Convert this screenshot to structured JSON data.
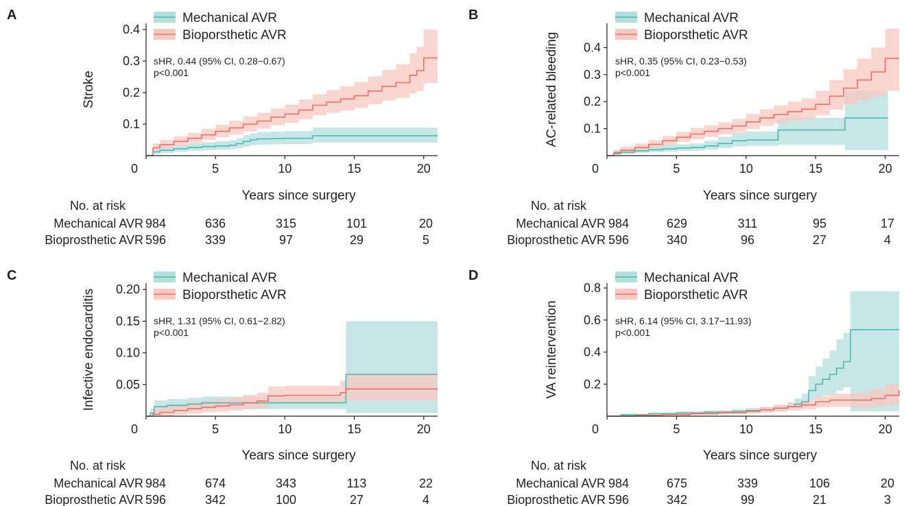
{
  "colors": {
    "mechanical_line": "#4bb8b4",
    "mechanical_band": "#b3dfdc",
    "bioprosthetic_line": "#ee6f61",
    "bioprosthetic_band": "#f8c8c2",
    "axis": "#231f20"
  },
  "risk_table": {
    "header": "No. at risk",
    "row_labels": [
      "Mechanical AVR",
      "Bioprosthetic AVR"
    ]
  },
  "chart_data": [
    {
      "panel": "A",
      "type": "line",
      "ylabel": "Stroke",
      "xlabel": "Years since surgery",
      "xlim": [
        0,
        21
      ],
      "ylim": [
        0,
        0.42
      ],
      "xticks": [
        0,
        5,
        10,
        15,
        20
      ],
      "yticks": [
        0.1,
        0.2,
        0.3,
        0.4
      ],
      "ytick_labels": [
        "0.1",
        "0.2",
        "0.3",
        "0.4"
      ],
      "legend_position": "top-left",
      "stats": [
        "sHR, 0.44 (95% CI, 0.28−0.67)",
        "p<0.001"
      ],
      "series": [
        {
          "name": "Mechanical AVR",
          "x": [
            0,
            0.5,
            1,
            2,
            3,
            4,
            5,
            6,
            6.5,
            7,
            7.5,
            8,
            9,
            10,
            11,
            12,
            13,
            14,
            15,
            16,
            17,
            18,
            19,
            20,
            21
          ],
          "y": [
            0,
            0.012,
            0.017,
            0.022,
            0.026,
            0.029,
            0.031,
            0.033,
            0.038,
            0.045,
            0.05,
            0.053,
            0.054,
            0.055,
            0.055,
            0.063,
            0.063,
            0.063,
            0.063,
            0.063,
            0.063,
            0.063,
            0.063,
            0.063,
            0.063
          ],
          "lower": [
            0,
            0.005,
            0.008,
            0.012,
            0.015,
            0.017,
            0.019,
            0.02,
            0.024,
            0.029,
            0.033,
            0.035,
            0.036,
            0.037,
            0.037,
            0.042,
            0.042,
            0.042,
            0.042,
            0.042,
            0.042,
            0.042,
            0.042,
            0.042,
            0.042
          ],
          "upper": [
            0,
            0.022,
            0.028,
            0.034,
            0.039,
            0.043,
            0.046,
            0.049,
            0.056,
            0.065,
            0.071,
            0.075,
            0.076,
            0.078,
            0.078,
            0.089,
            0.089,
            0.089,
            0.089,
            0.089,
            0.089,
            0.089,
            0.089,
            0.089,
            0.089
          ]
        },
        {
          "name": "Bioporsthetic AVR",
          "x": [
            0,
            0.5,
            1,
            2,
            3,
            4,
            5,
            6,
            7,
            8,
            9,
            10,
            11,
            12,
            13,
            14,
            15,
            16,
            17,
            18,
            19,
            19.5,
            20,
            21
          ],
          "y": [
            0,
            0.025,
            0.035,
            0.045,
            0.055,
            0.066,
            0.077,
            0.088,
            0.1,
            0.11,
            0.122,
            0.132,
            0.145,
            0.16,
            0.17,
            0.18,
            0.19,
            0.205,
            0.22,
            0.232,
            0.255,
            0.27,
            0.31,
            0.31
          ],
          "lower": [
            0,
            0.015,
            0.023,
            0.031,
            0.04,
            0.049,
            0.058,
            0.067,
            0.077,
            0.086,
            0.096,
            0.104,
            0.115,
            0.128,
            0.136,
            0.143,
            0.152,
            0.163,
            0.175,
            0.183,
            0.197,
            0.205,
            0.23,
            0.23
          ],
          "upper": [
            0,
            0.038,
            0.05,
            0.061,
            0.072,
            0.085,
            0.098,
            0.111,
            0.125,
            0.136,
            0.15,
            0.162,
            0.178,
            0.195,
            0.208,
            0.22,
            0.234,
            0.252,
            0.272,
            0.29,
            0.325,
            0.345,
            0.4,
            0.4
          ]
        }
      ],
      "risk_x": [
        0,
        5,
        10,
        15,
        20
      ],
      "risk_rows": [
        [
          "984",
          "636",
          "315",
          "101",
          "20"
        ],
        [
          "596",
          "339",
          "97",
          "29",
          "5"
        ]
      ]
    },
    {
      "panel": "B",
      "type": "line",
      "ylabel": "AC-related bleeding",
      "xlabel": "Years since surgery",
      "xlim": [
        0,
        21
      ],
      "ylim": [
        0,
        0.49
      ],
      "xticks": [
        0,
        5,
        10,
        15,
        20
      ],
      "yticks": [
        0.1,
        0.2,
        0.3,
        0.4
      ],
      "ytick_labels": [
        "0.1",
        "0.2",
        "0.3",
        "0.4"
      ],
      "legend_position": "top-left",
      "stats": [
        "sHR, 0.35 (95% CI, 0.23−0.53)",
        "p<0.001"
      ],
      "series": [
        {
          "name": "Mechanical AVR",
          "x": [
            0,
            0.5,
            1,
            2,
            3,
            4,
            5,
            6,
            7,
            8,
            9,
            10,
            11,
            12,
            12.3,
            13,
            14,
            15,
            16,
            17,
            17.1,
            18,
            19,
            20.2
          ],
          "y": [
            0,
            0.008,
            0.013,
            0.018,
            0.022,
            0.025,
            0.028,
            0.03,
            0.036,
            0.045,
            0.055,
            0.058,
            0.058,
            0.058,
            0.095,
            0.095,
            0.095,
            0.095,
            0.095,
            0.095,
            0.14,
            0.14,
            0.14,
            0.14
          ],
          "lower": [
            0,
            0.003,
            0.006,
            0.01,
            0.013,
            0.015,
            0.017,
            0.018,
            0.022,
            0.028,
            0.034,
            0.036,
            0.036,
            0.036,
            0.04,
            0.04,
            0.04,
            0.04,
            0.04,
            0.04,
            0.02,
            0.02,
            0.02,
            0.02
          ],
          "upper": [
            0,
            0.016,
            0.023,
            0.03,
            0.034,
            0.038,
            0.042,
            0.045,
            0.055,
            0.07,
            0.085,
            0.09,
            0.09,
            0.09,
            0.14,
            0.14,
            0.14,
            0.14,
            0.14,
            0.14,
            0.24,
            0.24,
            0.24,
            0.24
          ]
        },
        {
          "name": "Bioporsthetic AVR",
          "x": [
            0,
            0.5,
            1,
            2,
            3,
            4,
            5,
            6,
            7,
            8,
            9,
            10,
            11,
            12,
            13,
            14,
            15,
            16,
            17,
            18,
            19,
            20,
            21
          ],
          "y": [
            0,
            0.012,
            0.02,
            0.03,
            0.042,
            0.055,
            0.068,
            0.08,
            0.09,
            0.1,
            0.11,
            0.125,
            0.14,
            0.152,
            0.163,
            0.172,
            0.19,
            0.22,
            0.25,
            0.28,
            0.31,
            0.36,
            0.36
          ],
          "lower": [
            0,
            0.005,
            0.01,
            0.018,
            0.028,
            0.038,
            0.05,
            0.06,
            0.069,
            0.078,
            0.086,
            0.098,
            0.11,
            0.12,
            0.128,
            0.135,
            0.15,
            0.17,
            0.19,
            0.205,
            0.22,
            0.24,
            0.24
          ],
          "upper": [
            0,
            0.022,
            0.033,
            0.045,
            0.058,
            0.073,
            0.088,
            0.102,
            0.113,
            0.124,
            0.136,
            0.154,
            0.172,
            0.186,
            0.2,
            0.212,
            0.24,
            0.28,
            0.32,
            0.36,
            0.4,
            0.47,
            0.47
          ]
        }
      ],
      "risk_x": [
        0,
        5,
        10,
        15,
        20
      ],
      "risk_rows": [
        [
          "984",
          "629",
          "311",
          "95",
          "17"
        ],
        [
          "596",
          "340",
          "96",
          "27",
          "4"
        ]
      ]
    },
    {
      "panel": "C",
      "type": "line",
      "ylabel": "Infective endocarditis",
      "xlabel": "Years since surgery",
      "xlim": [
        0,
        21
      ],
      "ylim": [
        0,
        0.21
      ],
      "xticks": [
        0,
        5,
        10,
        15,
        20
      ],
      "yticks": [
        0.05,
        0.1,
        0.15,
        0.2
      ],
      "ytick_labels": [
        "0.05",
        "0.10",
        "0.15",
        "0.20"
      ],
      "legend_position": "top-left",
      "stats": [
        "sHR, 1.31 (95% CI, 0.61−2.82)",
        "p<0.001"
      ],
      "series": [
        {
          "name": "Mechanical AVR",
          "x": [
            0,
            0.3,
            0.6,
            1.5,
            3,
            4,
            5,
            6,
            8,
            10,
            12,
            14.4,
            15,
            17,
            19,
            21
          ],
          "y": [
            0,
            0.005,
            0.015,
            0.017,
            0.019,
            0.021,
            0.021,
            0.021,
            0.021,
            0.021,
            0.021,
            0.066,
            0.066,
            0.066,
            0.066,
            0.066
          ],
          "lower": [
            0,
            0,
            0.006,
            0.008,
            0.01,
            0.011,
            0.011,
            0.011,
            0.011,
            0.011,
            0.011,
            0.005,
            0.005,
            0.005,
            0.005,
            0.005
          ],
          "upper": [
            0,
            0.012,
            0.025,
            0.027,
            0.029,
            0.031,
            0.031,
            0.031,
            0.031,
            0.031,
            0.031,
            0.15,
            0.15,
            0.15,
            0.15,
            0.15
          ]
        },
        {
          "name": "Bioporsthetic AVR",
          "x": [
            0,
            0.5,
            1,
            2,
            3,
            4,
            5,
            6,
            7,
            8,
            8.8,
            10,
            12,
            14,
            14.4,
            16,
            18,
            21
          ],
          "y": [
            0,
            0.003,
            0.006,
            0.009,
            0.012,
            0.014,
            0.016,
            0.018,
            0.021,
            0.024,
            0.032,
            0.033,
            0.033,
            0.037,
            0.043,
            0.043,
            0.043,
            0.043
          ],
          "lower": [
            0,
            0,
            0,
            0.002,
            0.004,
            0.006,
            0.007,
            0.009,
            0.011,
            0.013,
            0.02,
            0.021,
            0.021,
            0.023,
            0.025,
            0.025,
            0.025,
            0.025
          ],
          "upper": [
            0,
            0.012,
            0.016,
            0.019,
            0.022,
            0.024,
            0.027,
            0.03,
            0.034,
            0.037,
            0.047,
            0.048,
            0.048,
            0.056,
            0.068,
            0.068,
            0.068,
            0.068
          ]
        }
      ],
      "risk_x": [
        0,
        5,
        10,
        15,
        20
      ],
      "risk_rows": [
        [
          "984",
          "674",
          "343",
          "113",
          "22"
        ],
        [
          "596",
          "342",
          "100",
          "27",
          "4"
        ]
      ]
    },
    {
      "panel": "D",
      "type": "line",
      "ylabel": "VA reintervention",
      "xlabel": "Years since surgery",
      "xlim": [
        0,
        21
      ],
      "ylim": [
        0,
        0.83
      ],
      "xticks": [
        0,
        5,
        10,
        15,
        20
      ],
      "yticks": [
        0.2,
        0.4,
        0.6,
        0.8
      ],
      "ytick_labels": [
        "0.2",
        "0.4",
        "0.6",
        "0.8"
      ],
      "legend_position": "top-left",
      "stats": [
        "sHR, 6.14 (95% CI, 3.17−11.93)",
        "p<0.001"
      ],
      "series": [
        {
          "name": "Mechanical AVR",
          "x": [
            0,
            1,
            3,
            5,
            7,
            9,
            10,
            11,
            12,
            13,
            13.5,
            14,
            14.5,
            15,
            15.5,
            16,
            16.5,
            17,
            17.5,
            19,
            21
          ],
          "y": [
            0,
            0.008,
            0.015,
            0.02,
            0.025,
            0.03,
            0.035,
            0.04,
            0.05,
            0.06,
            0.075,
            0.09,
            0.16,
            0.2,
            0.23,
            0.26,
            0.3,
            0.34,
            0.54,
            0.54,
            0.54
          ],
          "lower": [
            0,
            0.003,
            0.008,
            0.012,
            0.016,
            0.02,
            0.023,
            0.026,
            0.033,
            0.04,
            0.05,
            0.06,
            0.1,
            0.12,
            0.13,
            0.14,
            0.16,
            0.18,
            0.03,
            0.03,
            0.03
          ],
          "upper": [
            0,
            0.016,
            0.024,
            0.03,
            0.036,
            0.043,
            0.05,
            0.057,
            0.07,
            0.085,
            0.11,
            0.14,
            0.25,
            0.31,
            0.36,
            0.41,
            0.48,
            0.52,
            0.78,
            0.78,
            0.78
          ]
        },
        {
          "name": "Bioporsthetic AVR",
          "x": [
            0,
            2,
            4,
            6,
            8,
            10,
            11,
            12,
            13,
            14,
            15,
            16,
            17,
            18,
            19,
            20,
            21
          ],
          "y": [
            0,
            0.005,
            0.01,
            0.016,
            0.022,
            0.03,
            0.04,
            0.05,
            0.06,
            0.07,
            0.09,
            0.1,
            0.1,
            0.1,
            0.11,
            0.13,
            0.16
          ],
          "lower": [
            0,
            0,
            0.003,
            0.007,
            0.011,
            0.015,
            0.022,
            0.028,
            0.035,
            0.042,
            0.055,
            0.06,
            0.06,
            0.05,
            0.06,
            0.07,
            0.08
          ],
          "upper": [
            0,
            0.012,
            0.018,
            0.026,
            0.035,
            0.045,
            0.058,
            0.072,
            0.085,
            0.1,
            0.125,
            0.14,
            0.14,
            0.15,
            0.17,
            0.2,
            0.25
          ]
        }
      ],
      "risk_x": [
        0,
        5,
        10,
        15,
        20
      ],
      "risk_rows": [
        [
          "984",
          "675",
          "339",
          "106",
          "20"
        ],
        [
          "596",
          "342",
          "99",
          "21",
          "3"
        ]
      ]
    }
  ]
}
